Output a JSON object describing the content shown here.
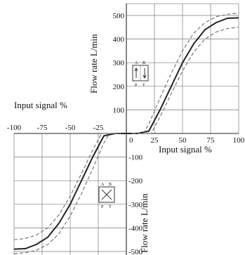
{
  "chart_data": {
    "type": "line",
    "x_ticks": [
      "-100",
      "-75",
      "-50",
      "-25",
      "0",
      "25",
      "50",
      "75",
      "100"
    ],
    "y_ticks": [
      "500",
      "400",
      "300",
      "200",
      "100",
      "-100",
      "-200",
      "-300",
      "-400",
      "-500"
    ],
    "x_label_left": "Input signal   %",
    "x_label_right": "Input signal   %",
    "y_label_top": "Flow rate   L/min",
    "y_label_bottom": "Flow rate   L/min",
    "xlim": [
      -100,
      100
    ],
    "ylim": [
      -550,
      550
    ],
    "grid": true,
    "symbol_top": [
      "A",
      "B",
      "P",
      "T"
    ],
    "symbol_bottom": [
      "A",
      "B",
      "P",
      "T"
    ],
    "series": [
      {
        "style": "solid",
        "x": [
          -100,
          -90,
          -80,
          -70,
          -60,
          -50,
          -40,
          -30,
          -20,
          -10,
          -5,
          5,
          10,
          20,
          30,
          40,
          50,
          60,
          70,
          80,
          90,
          100
        ],
        "y": [
          -490,
          -488,
          -470,
          -440,
          -380,
          -300,
          -200,
          -100,
          -10,
          0,
          0,
          0,
          0,
          10,
          100,
          200,
          300,
          380,
          440,
          470,
          488,
          490
        ]
      },
      {
        "style": "dashed",
        "x": [
          -100,
          -90,
          -80,
          -70,
          -60,
          -50,
          -40,
          -30,
          -20,
          -15,
          -10,
          -5
        ],
        "y": [
          -510,
          -505,
          -495,
          -470,
          -425,
          -350,
          -255,
          -150,
          -40,
          0,
          0,
          0
        ]
      },
      {
        "style": "dashed",
        "x": [
          -100,
          -90,
          -80,
          -70,
          -60,
          -50,
          -40,
          -30,
          -22,
          -20,
          -15,
          -10,
          -5
        ],
        "y": [
          -450,
          -445,
          -430,
          -400,
          -345,
          -265,
          -170,
          -70,
          0,
          0,
          0,
          0,
          0
        ]
      },
      {
        "style": "dashed",
        "x": [
          5,
          10,
          15,
          20,
          30,
          40,
          50,
          60,
          70,
          80,
          90,
          100
        ],
        "y": [
          0,
          0,
          0,
          40,
          150,
          255,
          350,
          425,
          470,
          495,
          505,
          510
        ]
      },
      {
        "style": "dashed",
        "x": [
          5,
          10,
          15,
          20,
          22,
          30,
          40,
          50,
          60,
          70,
          80,
          90,
          100
        ],
        "y": [
          0,
          0,
          0,
          0,
          0,
          70,
          170,
          265,
          345,
          400,
          430,
          445,
          450
        ]
      }
    ]
  }
}
